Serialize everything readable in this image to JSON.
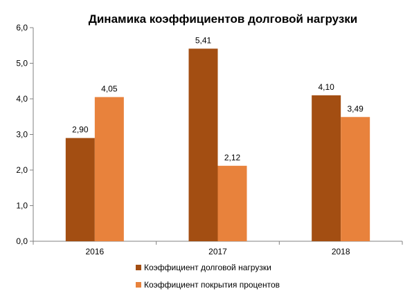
{
  "chart_data": {
    "type": "bar",
    "title": "Динамика коэффициентов долговой нагрузки",
    "categories": [
      "2016",
      "2017",
      "2018"
    ],
    "series": [
      {
        "name": "Коэффициент долговой нагрузки",
        "color": "#A34E12",
        "values": [
          2.9,
          5.41,
          4.1
        ],
        "labels": [
          "2,90",
          "5,41",
          "4,10"
        ]
      },
      {
        "name": "Коэффициент покрытия процентов",
        "color": "#E8823C",
        "values": [
          4.05,
          2.12,
          3.49
        ],
        "labels": [
          "4,05",
          "2,12",
          "3,49"
        ]
      }
    ],
    "y_ticks": [
      "0,0",
      "1,0",
      "2,0",
      "3,0",
      "4,0",
      "5,0",
      "6,0"
    ],
    "ylim": [
      0,
      6
    ],
    "grid": false,
    "legend_position": "bottom-center"
  }
}
